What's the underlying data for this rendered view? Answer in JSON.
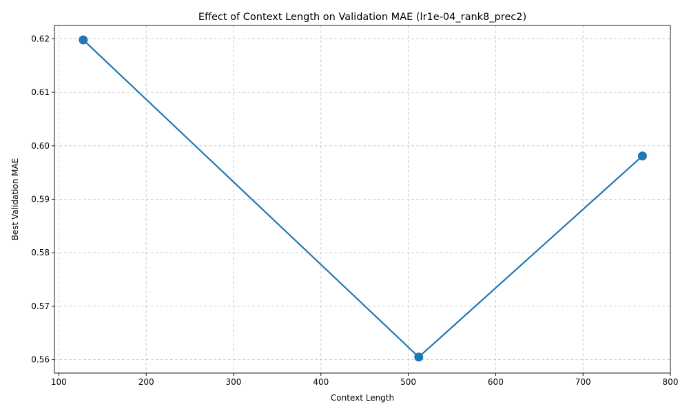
{
  "chart_data": {
    "type": "line",
    "title": "Effect of Context Length on Validation MAE (lr1e-04_rank8_prec2)",
    "xlabel": "Context Length",
    "ylabel": "Best Validation MAE",
    "x": [
      128,
      512,
      768
    ],
    "series": [
      {
        "values": [
          0.6198,
          0.5605,
          0.5981
        ],
        "color": "#1f77b4"
      }
    ],
    "xlim": [
      95,
      800
    ],
    "ylim": [
      0.5575,
      0.6225
    ],
    "xticks": [
      100,
      200,
      300,
      400,
      500,
      600,
      700,
      800
    ],
    "yticks": [
      0.56,
      0.57,
      0.58,
      0.59,
      0.6,
      0.61,
      0.62
    ],
    "xtick_labels": [
      "100",
      "200",
      "300",
      "400",
      "500",
      "600",
      "700",
      "800"
    ],
    "ytick_labels": [
      "0.56",
      "0.57",
      "0.58",
      "0.59",
      "0.60",
      "0.61",
      "0.62"
    ],
    "grid": true,
    "markers": true
  }
}
